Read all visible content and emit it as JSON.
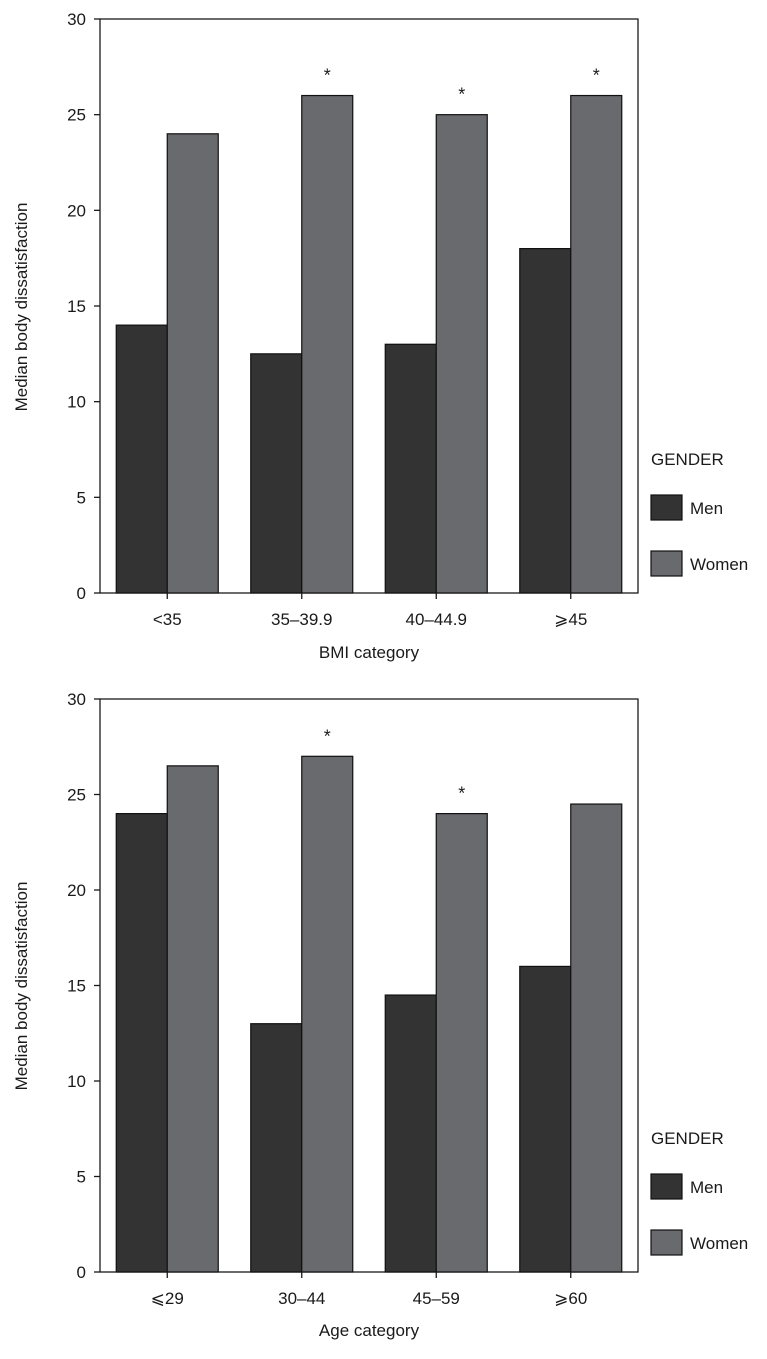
{
  "chart_data": [
    {
      "type": "bar",
      "xlabel": "BMI category",
      "ylabel": "Median body dissatisfaction",
      "ylim": [
        0,
        30
      ],
      "yticks": [
        0,
        5,
        10,
        15,
        20,
        25,
        30
      ],
      "categories": [
        "<35",
        "35–39.9",
        "40–44.9",
        "⩾45"
      ],
      "series": [
        {
          "name": "Men",
          "values": [
            14,
            12.5,
            13,
            18
          ],
          "color": "#333333"
        },
        {
          "name": "Women",
          "values": [
            24,
            26,
            25,
            26
          ],
          "color": "#696a6e"
        }
      ],
      "significance_markers": [
        "",
        "*",
        "*",
        "*"
      ],
      "legend": {
        "title": "GENDER",
        "position": "right",
        "entries": [
          "Men",
          "Women"
        ]
      },
      "grid": false
    },
    {
      "type": "bar",
      "xlabel": "Age category",
      "ylabel": "Median body dissatisfaction",
      "ylim": [
        0,
        30
      ],
      "yticks": [
        0,
        5,
        10,
        15,
        20,
        25,
        30
      ],
      "categories": [
        "⩽29",
        "30–44",
        "45–59",
        "⩾60"
      ],
      "series": [
        {
          "name": "Men",
          "values": [
            24,
            13,
            14.5,
            16
          ],
          "color": "#333333"
        },
        {
          "name": "Women",
          "values": [
            26.5,
            27,
            24,
            24.5
          ],
          "color": "#696a6e"
        }
      ],
      "significance_markers": [
        "",
        "*",
        "*",
        ""
      ],
      "legend": {
        "title": "GENDER",
        "position": "right",
        "entries": [
          "Men",
          "Women"
        ]
      },
      "grid": false
    }
  ]
}
